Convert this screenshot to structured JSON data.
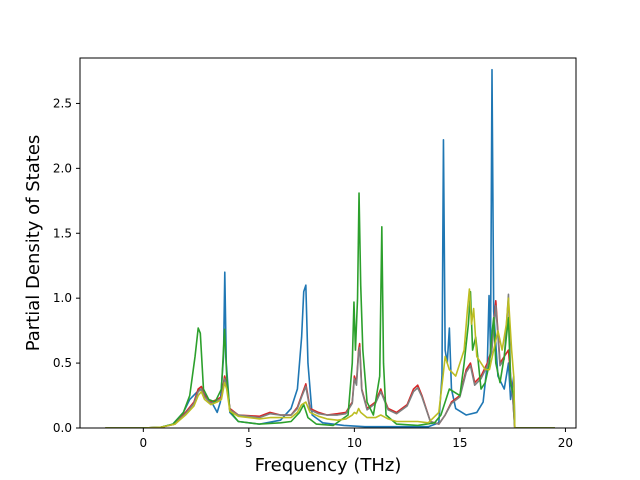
{
  "chart_data": {
    "type": "line",
    "title": "",
    "xlabel": "Frequency (THz)",
    "ylabel": "Partial Density of States",
    "xlim": [
      -3,
      20.5
    ],
    "ylim": [
      0,
      2.85
    ],
    "xticks": [
      0,
      5,
      10,
      15,
      20
    ],
    "yticks": [
      0.0,
      0.5,
      1.0,
      1.5,
      2.0,
      2.5
    ],
    "xtick_labels": [
      "0",
      "5",
      "10",
      "15",
      "20"
    ],
    "ytick_labels": [
      "0.0",
      "0.5",
      "1.0",
      "1.5",
      "2.0",
      "2.5"
    ],
    "grid": false,
    "series": [
      {
        "color": "#1f77b4",
        "points": [
          [
            -1.8,
            0
          ],
          [
            0,
            0
          ],
          [
            0.8,
            0.005
          ],
          [
            1.4,
            0.03
          ],
          [
            1.9,
            0.12
          ],
          [
            2.2,
            0.22
          ],
          [
            2.5,
            0.27
          ],
          [
            2.7,
            0.3
          ],
          [
            2.9,
            0.26
          ],
          [
            3.1,
            0.22
          ],
          [
            3.3,
            0.18
          ],
          [
            3.5,
            0.12
          ],
          [
            3.65,
            0.2
          ],
          [
            3.8,
            0.55
          ],
          [
            3.86,
            1.2
          ],
          [
            3.93,
            0.5
          ],
          [
            4.1,
            0.12
          ],
          [
            4.5,
            0.05
          ],
          [
            5.5,
            0.03
          ],
          [
            6.5,
            0.06
          ],
          [
            7.0,
            0.15
          ],
          [
            7.3,
            0.3
          ],
          [
            7.5,
            0.7
          ],
          [
            7.6,
            1.05
          ],
          [
            7.7,
            1.1
          ],
          [
            7.8,
            0.5
          ],
          [
            8.0,
            0.1
          ],
          [
            8.5,
            0.04
          ],
          [
            9.5,
            0.02
          ],
          [
            10.5,
            0.01
          ],
          [
            12.0,
            0.01
          ],
          [
            13.5,
            0.01
          ],
          [
            14.0,
            0.04
          ],
          [
            14.15,
            0.4
          ],
          [
            14.22,
            2.22
          ],
          [
            14.3,
            0.6
          ],
          [
            14.4,
            0.5
          ],
          [
            14.5,
            0.77
          ],
          [
            14.6,
            0.3
          ],
          [
            14.8,
            0.15
          ],
          [
            15.3,
            0.1
          ],
          [
            15.8,
            0.12
          ],
          [
            16.1,
            0.2
          ],
          [
            16.3,
            0.5
          ],
          [
            16.38,
            1.02
          ],
          [
            16.45,
            0.6
          ],
          [
            16.52,
            2.76
          ],
          [
            16.6,
            0.9
          ],
          [
            16.8,
            0.4
          ],
          [
            17.1,
            0.3
          ],
          [
            17.3,
            0.5
          ],
          [
            17.4,
            0.22
          ],
          [
            17.55,
            0.4
          ],
          [
            17.6,
            0
          ],
          [
            19.5,
            0
          ]
        ]
      },
      {
        "color": "#d62728",
        "points": [
          [
            -1.8,
            0
          ],
          [
            0,
            0
          ],
          [
            0.8,
            0.005
          ],
          [
            1.5,
            0.03
          ],
          [
            2.0,
            0.12
          ],
          [
            2.4,
            0.2
          ],
          [
            2.6,
            0.3
          ],
          [
            2.75,
            0.32
          ],
          [
            2.9,
            0.25
          ],
          [
            3.2,
            0.2
          ],
          [
            3.5,
            0.22
          ],
          [
            3.7,
            0.24
          ],
          [
            3.85,
            0.4
          ],
          [
            3.95,
            0.35
          ],
          [
            4.1,
            0.15
          ],
          [
            4.5,
            0.1
          ],
          [
            5.5,
            0.09
          ],
          [
            6.0,
            0.12
          ],
          [
            6.5,
            0.1
          ],
          [
            7.0,
            0.1
          ],
          [
            7.3,
            0.16
          ],
          [
            7.5,
            0.25
          ],
          [
            7.7,
            0.34
          ],
          [
            7.9,
            0.15
          ],
          [
            8.3,
            0.12
          ],
          [
            8.7,
            0.1
          ],
          [
            9.2,
            0.11
          ],
          [
            9.6,
            0.12
          ],
          [
            9.9,
            0.2
          ],
          [
            10.0,
            0.4
          ],
          [
            10.1,
            0.35
          ],
          [
            10.2,
            0.6
          ],
          [
            10.25,
            0.65
          ],
          [
            10.35,
            0.3
          ],
          [
            10.6,
            0.15
          ],
          [
            11.0,
            0.2
          ],
          [
            11.25,
            0.3
          ],
          [
            11.35,
            0.25
          ],
          [
            11.6,
            0.15
          ],
          [
            12.0,
            0.12
          ],
          [
            12.5,
            0.18
          ],
          [
            12.8,
            0.3
          ],
          [
            13.0,
            0.33
          ],
          [
            13.2,
            0.25
          ],
          [
            13.6,
            0.05
          ],
          [
            14.0,
            0.03
          ],
          [
            14.3,
            0.1
          ],
          [
            14.6,
            0.2
          ],
          [
            15.0,
            0.25
          ],
          [
            15.3,
            0.45
          ],
          [
            15.5,
            0.5
          ],
          [
            15.7,
            0.35
          ],
          [
            16.0,
            0.4
          ],
          [
            16.3,
            0.5
          ],
          [
            16.5,
            0.6
          ],
          [
            16.7,
            0.98
          ],
          [
            16.9,
            0.5
          ],
          [
            17.1,
            0.55
          ],
          [
            17.3,
            0.6
          ],
          [
            17.4,
            0.4
          ],
          [
            17.5,
            0.25
          ],
          [
            17.6,
            0
          ],
          [
            19.5,
            0
          ]
        ]
      },
      {
        "color": "#7f7f7f",
        "points": [
          [
            -1.8,
            0
          ],
          [
            0,
            0
          ],
          [
            0.8,
            0.005
          ],
          [
            1.5,
            0.03
          ],
          [
            2.0,
            0.11
          ],
          [
            2.4,
            0.19
          ],
          [
            2.6,
            0.28
          ],
          [
            2.75,
            0.3
          ],
          [
            2.9,
            0.24
          ],
          [
            3.2,
            0.19
          ],
          [
            3.5,
            0.21
          ],
          [
            3.7,
            0.23
          ],
          [
            3.85,
            0.38
          ],
          [
            3.95,
            0.33
          ],
          [
            4.1,
            0.14
          ],
          [
            4.5,
            0.1
          ],
          [
            5.5,
            0.08
          ],
          [
            6.0,
            0.11
          ],
          [
            6.5,
            0.1
          ],
          [
            7.0,
            0.1
          ],
          [
            7.3,
            0.15
          ],
          [
            7.5,
            0.24
          ],
          [
            7.7,
            0.32
          ],
          [
            7.9,
            0.14
          ],
          [
            8.3,
            0.11
          ],
          [
            8.7,
            0.1
          ],
          [
            9.2,
            0.1
          ],
          [
            9.6,
            0.11
          ],
          [
            9.9,
            0.19
          ],
          [
            10.0,
            0.38
          ],
          [
            10.1,
            0.33
          ],
          [
            10.2,
            0.58
          ],
          [
            10.25,
            0.62
          ],
          [
            10.35,
            0.29
          ],
          [
            10.6,
            0.14
          ],
          [
            11.0,
            0.19
          ],
          [
            11.25,
            0.28
          ],
          [
            11.35,
            0.24
          ],
          [
            11.6,
            0.14
          ],
          [
            12.0,
            0.11
          ],
          [
            12.5,
            0.17
          ],
          [
            12.8,
            0.28
          ],
          [
            13.0,
            0.31
          ],
          [
            13.2,
            0.24
          ],
          [
            13.6,
            0.05
          ],
          [
            14.0,
            0.03
          ],
          [
            14.3,
            0.1
          ],
          [
            14.6,
            0.19
          ],
          [
            15.0,
            0.24
          ],
          [
            15.3,
            0.43
          ],
          [
            15.5,
            0.48
          ],
          [
            15.7,
            0.33
          ],
          [
            16.0,
            0.38
          ],
          [
            16.3,
            0.48
          ],
          [
            16.5,
            0.58
          ],
          [
            16.7,
            0.94
          ],
          [
            16.9,
            0.48
          ],
          [
            17.1,
            0.53
          ],
          [
            17.3,
            1.03
          ],
          [
            17.4,
            0.38
          ],
          [
            17.5,
            0.24
          ],
          [
            17.6,
            0
          ],
          [
            19.5,
            0
          ]
        ]
      },
      {
        "color": "#2ca02c",
        "points": [
          [
            -1.8,
            0
          ],
          [
            0,
            0
          ],
          [
            0.8,
            0.005
          ],
          [
            1.4,
            0.03
          ],
          [
            1.9,
            0.12
          ],
          [
            2.2,
            0.25
          ],
          [
            2.45,
            0.55
          ],
          [
            2.6,
            0.77
          ],
          [
            2.7,
            0.73
          ],
          [
            2.85,
            0.3
          ],
          [
            3.1,
            0.22
          ],
          [
            3.4,
            0.2
          ],
          [
            3.7,
            0.3
          ],
          [
            3.85,
            0.76
          ],
          [
            3.95,
            0.4
          ],
          [
            4.1,
            0.13
          ],
          [
            4.5,
            0.05
          ],
          [
            5.5,
            0.03
          ],
          [
            6.5,
            0.04
          ],
          [
            7.0,
            0.05
          ],
          [
            7.4,
            0.12
          ],
          [
            7.6,
            0.18
          ],
          [
            7.8,
            0.08
          ],
          [
            8.2,
            0.03
          ],
          [
            9.0,
            0.02
          ],
          [
            9.7,
            0.1
          ],
          [
            9.9,
            0.5
          ],
          [
            9.98,
            0.97
          ],
          [
            10.05,
            0.6
          ],
          [
            10.15,
            1.0
          ],
          [
            10.22,
            1.81
          ],
          [
            10.3,
            1.1
          ],
          [
            10.4,
            0.6
          ],
          [
            10.6,
            0.2
          ],
          [
            10.9,
            0.1
          ],
          [
            11.2,
            0.4
          ],
          [
            11.3,
            1.55
          ],
          [
            11.38,
            0.5
          ],
          [
            11.5,
            0.1
          ],
          [
            12.0,
            0.03
          ],
          [
            13.0,
            0.02
          ],
          [
            13.8,
            0.04
          ],
          [
            14.1,
            0.1
          ],
          [
            14.3,
            0.2
          ],
          [
            14.5,
            0.3
          ],
          [
            15.0,
            0.25
          ],
          [
            15.2,
            0.5
          ],
          [
            15.4,
            0.8
          ],
          [
            15.5,
            1.05
          ],
          [
            15.6,
            0.6
          ],
          [
            15.75,
            0.7
          ],
          [
            16.0,
            0.3
          ],
          [
            16.2,
            0.35
          ],
          [
            16.4,
            0.5
          ],
          [
            16.5,
            0.7
          ],
          [
            16.6,
            0.85
          ],
          [
            16.7,
            0.5
          ],
          [
            16.9,
            0.35
          ],
          [
            17.1,
            0.55
          ],
          [
            17.3,
            0.85
          ],
          [
            17.4,
            0.35
          ],
          [
            17.55,
            0.25
          ],
          [
            17.6,
            0
          ],
          [
            19.5,
            0
          ]
        ]
      },
      {
        "color": "#bcbd22",
        "points": [
          [
            -1.8,
            0
          ],
          [
            0,
            0
          ],
          [
            0.8,
            0.005
          ],
          [
            1.5,
            0.03
          ],
          [
            2.0,
            0.1
          ],
          [
            2.4,
            0.17
          ],
          [
            2.6,
            0.25
          ],
          [
            2.75,
            0.28
          ],
          [
            2.9,
            0.22
          ],
          [
            3.2,
            0.18
          ],
          [
            3.5,
            0.2
          ],
          [
            3.7,
            0.22
          ],
          [
            3.85,
            0.35
          ],
          [
            3.95,
            0.3
          ],
          [
            4.1,
            0.13
          ],
          [
            4.5,
            0.09
          ],
          [
            5.5,
            0.07
          ],
          [
            6.0,
            0.08
          ],
          [
            6.5,
            0.08
          ],
          [
            7.0,
            0.08
          ],
          [
            7.3,
            0.12
          ],
          [
            7.5,
            0.18
          ],
          [
            7.7,
            0.2
          ],
          [
            7.9,
            0.12
          ],
          [
            8.3,
            0.09
          ],
          [
            8.7,
            0.07
          ],
          [
            9.2,
            0.06
          ],
          [
            9.6,
            0.07
          ],
          [
            9.9,
            0.1
          ],
          [
            10.0,
            0.12
          ],
          [
            10.1,
            0.11
          ],
          [
            10.2,
            0.15
          ],
          [
            10.3,
            0.12
          ],
          [
            10.6,
            0.08
          ],
          [
            11.0,
            0.08
          ],
          [
            11.25,
            0.1
          ],
          [
            11.6,
            0.07
          ],
          [
            12.0,
            0.05
          ],
          [
            12.5,
            0.05
          ],
          [
            13.0,
            0.05
          ],
          [
            13.5,
            0.04
          ],
          [
            14.0,
            0.12
          ],
          [
            14.2,
            0.4
          ],
          [
            14.3,
            0.55
          ],
          [
            14.5,
            0.45
          ],
          [
            14.8,
            0.4
          ],
          [
            15.0,
            0.5
          ],
          [
            15.2,
            0.6
          ],
          [
            15.35,
            0.9
          ],
          [
            15.45,
            1.07
          ],
          [
            15.55,
            0.8
          ],
          [
            15.65,
            0.92
          ],
          [
            15.8,
            0.55
          ],
          [
            16.0,
            0.5
          ],
          [
            16.2,
            0.45
          ],
          [
            16.4,
            0.45
          ],
          [
            16.6,
            0.6
          ],
          [
            16.8,
            0.75
          ],
          [
            17.0,
            0.6
          ],
          [
            17.2,
            0.8
          ],
          [
            17.3,
            1.0
          ],
          [
            17.45,
            0.6
          ],
          [
            17.55,
            0.4
          ],
          [
            17.6,
            0
          ],
          [
            19.5,
            0
          ]
        ]
      }
    ]
  }
}
